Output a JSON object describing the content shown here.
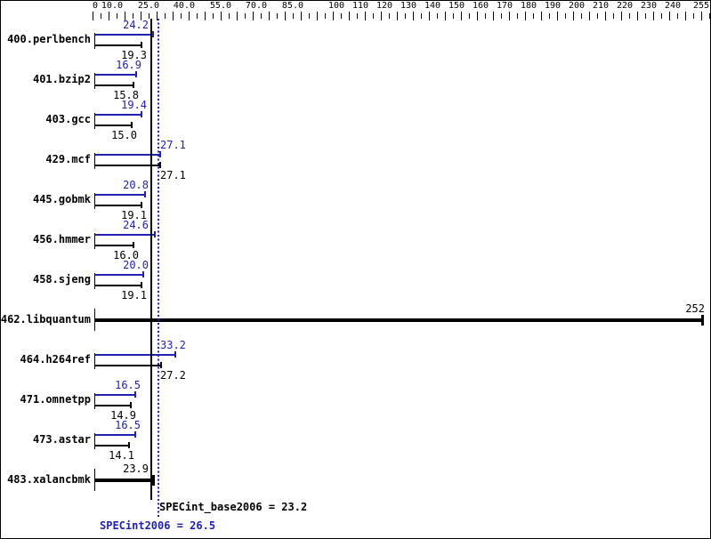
{
  "chart_data": {
    "type": "bar",
    "orientation": "horizontal",
    "title": "",
    "xlim": [
      0,
      255
    ],
    "grid": false,
    "colors": {
      "peak": "#2222b2",
      "base": "#000000"
    },
    "axis_ticks": [
      {
        "value": 0,
        "label": "0"
      },
      {
        "value": 10,
        "label": "10.0"
      },
      {
        "value": 25,
        "label": "25.0"
      },
      {
        "value": 40,
        "label": "40.0"
      },
      {
        "value": 55,
        "label": "55.0"
      },
      {
        "value": 70,
        "label": "70.0"
      },
      {
        "value": 85,
        "label": "85.0"
      },
      {
        "value": 100,
        "label": "100"
      },
      {
        "value": 110,
        "label": "110"
      },
      {
        "value": 120,
        "label": "120"
      },
      {
        "value": 130,
        "label": "130"
      },
      {
        "value": 140,
        "label": "140"
      },
      {
        "value": 150,
        "label": "150"
      },
      {
        "value": 160,
        "label": "160"
      },
      {
        "value": 170,
        "label": "170"
      },
      {
        "value": 180,
        "label": "180"
      },
      {
        "value": 190,
        "label": "190"
      },
      {
        "value": 200,
        "label": "200"
      },
      {
        "value": 210,
        "label": "210"
      },
      {
        "value": 220,
        "label": "220"
      },
      {
        "value": 230,
        "label": "230"
      },
      {
        "value": 240,
        "label": "240"
      },
      {
        "value": 255,
        "label": "255"
      }
    ],
    "benchmarks": [
      {
        "name": "400.perlbench",
        "peak": 24.2,
        "peak_label": "24.2",
        "base": 19.3,
        "base_label": "19.3"
      },
      {
        "name": "401.bzip2",
        "peak": 16.9,
        "peak_label": "16.9",
        "base": 15.8,
        "base_label": "15.8"
      },
      {
        "name": "403.gcc",
        "peak": 19.4,
        "peak_label": "19.4",
        "base": 15.0,
        "base_label": "15.0"
      },
      {
        "name": "429.mcf",
        "peak": 27.1,
        "peak_label": "27.1",
        "base": 27.1,
        "base_label": "27.1"
      },
      {
        "name": "445.gobmk",
        "peak": 20.8,
        "peak_label": "20.8",
        "base": 19.1,
        "base_label": "19.1"
      },
      {
        "name": "456.hmmer",
        "peak": 24.6,
        "peak_label": "24.6",
        "base": 16.0,
        "base_label": "16.0"
      },
      {
        "name": "458.sjeng",
        "peak": 20.0,
        "peak_label": "20.0",
        "base": 19.1,
        "base_label": "19.1"
      },
      {
        "name": "462.libquantum",
        "value": 252,
        "label": "252",
        "single": true
      },
      {
        "name": "464.h264ref",
        "peak": 33.2,
        "peak_label": "33.2",
        "base": 27.2,
        "base_label": "27.2"
      },
      {
        "name": "471.omnetpp",
        "peak": 16.5,
        "peak_label": "16.5",
        "base": 14.9,
        "base_label": "14.9"
      },
      {
        "name": "473.astar",
        "peak": 16.5,
        "peak_label": "16.5",
        "base": 14.1,
        "base_label": "14.1"
      },
      {
        "name": "483.xalancbmk",
        "value": 23.9,
        "label": "23.9",
        "single": true
      }
    ],
    "means": {
      "base": {
        "label": "SPECint_base2006 = 23.2",
        "value": 23.2
      },
      "peak": {
        "label": "SPECint2006 = 26.5",
        "value": 26.5
      }
    }
  }
}
